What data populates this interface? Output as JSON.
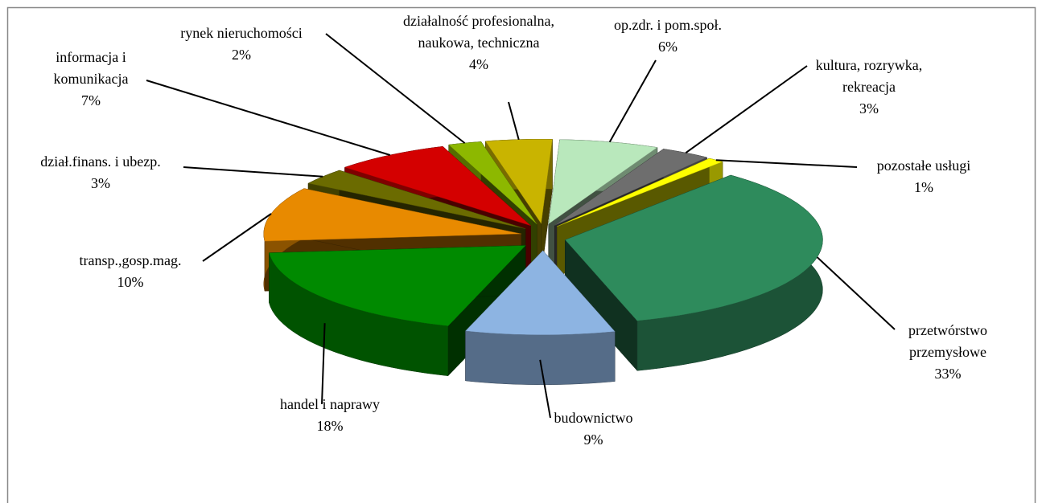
{
  "chart_data": {
    "type": "pie",
    "categories": [
      "przetwórstwo przemysłowe",
      "budownictwo",
      "handel i naprawy",
      "transp.,gosp.mag.",
      "dział.finans. i ubezp.",
      "informacja i komunikacja",
      "rynek nieruchomości",
      "działalność profesionalna, naukowa, techniczna",
      "op.zdr. i pom.społ.",
      "kultura, rozrywka, rekreacja",
      "pozostałe usługi"
    ],
    "values": [
      33,
      9,
      18,
      10,
      3,
      7,
      2,
      4,
      6,
      3,
      1
    ],
    "value_labels": [
      "33%",
      "9%",
      "18%",
      "10%",
      "3%",
      "7%",
      "2%",
      "4%",
      "6%",
      "3%",
      "1%"
    ],
    "colors": [
      "#2e8b5c",
      "#8db4e2",
      "#008a00",
      "#e88a00",
      "#6b6b00",
      "#d40000",
      "#8db800",
      "#c9b400",
      "#b9e8bc",
      "#6e6e6e",
      "#ffff00"
    ]
  }
}
